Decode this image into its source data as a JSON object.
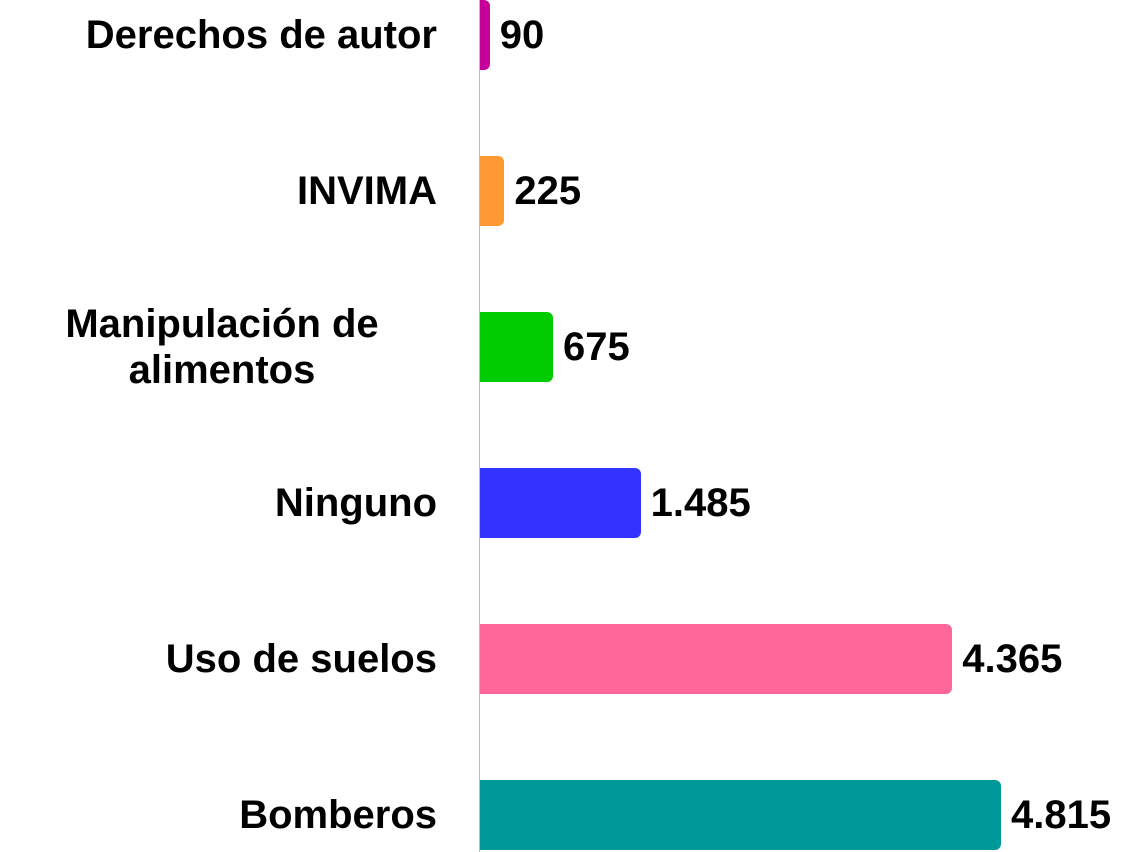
{
  "chart_data": {
    "type": "bar",
    "orientation": "horizontal",
    "categories": [
      "Derechos de autor",
      "INVIMA",
      "Manipulación de alimentos",
      "Ninguno",
      "Uso de suelos",
      "Bomberos"
    ],
    "values": [
      90,
      225,
      675,
      1485,
      4365,
      4815
    ],
    "value_labels": [
      "90",
      "225",
      "675",
      "1.485",
      "4.365",
      "4.815"
    ],
    "colors": [
      "#c8009b",
      "#ff9933",
      "#00cc00",
      "#3333ff",
      "#ff6699",
      "#009999"
    ]
  }
}
